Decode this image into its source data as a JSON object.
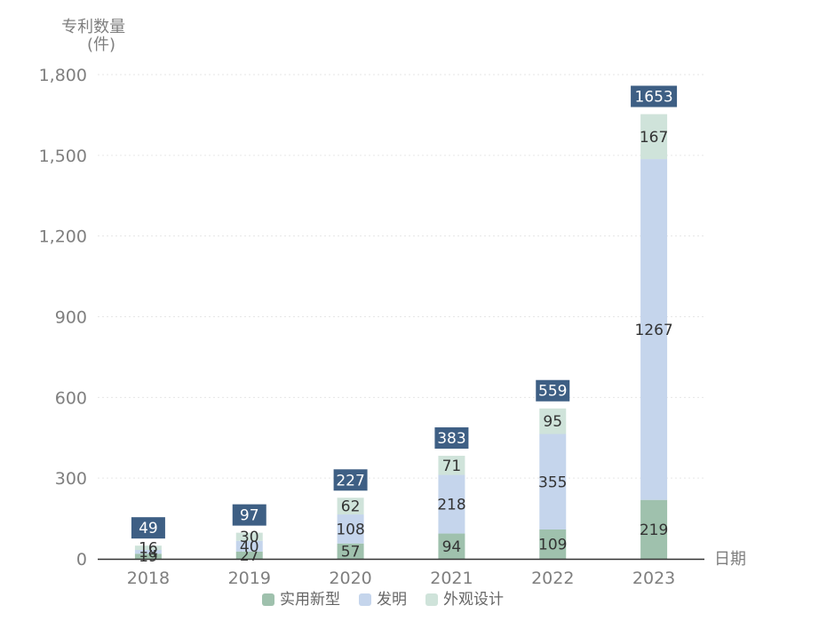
{
  "chart_data": {
    "type": "bar",
    "stacked": true,
    "ylabel_lines": [
      "专利数量",
      "(件)"
    ],
    "xlabel": "日期",
    "categories": [
      "2018",
      "2019",
      "2020",
      "2021",
      "2022",
      "2023"
    ],
    "series": [
      {
        "name": "实用新型",
        "color": "#9fc1ad",
        "values": [
          19,
          27,
          57,
          94,
          109,
          219
        ]
      },
      {
        "name": "发明",
        "color": "#c5d5ec",
        "values": [
          14,
          40,
          108,
          218,
          355,
          1267
        ]
      },
      {
        "name": "外观设计",
        "color": "#cfe3da",
        "values": [
          16,
          30,
          62,
          71,
          95,
          167
        ]
      }
    ],
    "totals": [
      49,
      97,
      227,
      383,
      559,
      1653
    ],
    "total_label_color": "#3e5f84",
    "ylim": [
      0,
      1800
    ],
    "yticks": [
      0,
      300,
      600,
      900,
      1200,
      1500,
      1800
    ],
    "ytick_labels": [
      "0",
      "300",
      "600",
      "900",
      "1,200",
      "1,500",
      "1,800"
    ],
    "grid": true,
    "legend_position": "bottom"
  }
}
